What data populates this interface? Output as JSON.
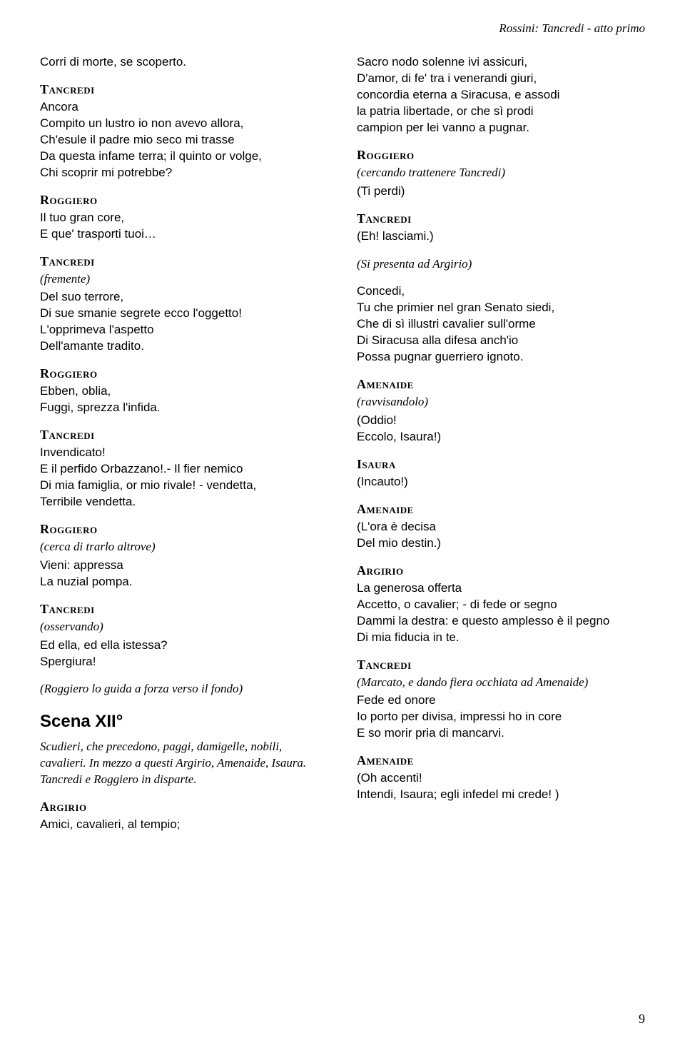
{
  "header": "Rossini: Tancredi - atto primo",
  "page_number": "9",
  "left": [
    {
      "type": "dialogue",
      "text": "Corri di morte, se scoperto."
    },
    {
      "type": "char",
      "text": "Tancredi"
    },
    {
      "type": "dialogue",
      "text": "Ancora\nCompito un lustro io non avevo allora,\nCh'esule il padre mio seco mi trasse\nDa questa infame terra; il quinto or volge,\nChi scoprir mi potrebbe?"
    },
    {
      "type": "char",
      "text": "Roggiero"
    },
    {
      "type": "dialogue",
      "text": "Il tuo gran core,\nE que' trasporti tuoi…"
    },
    {
      "type": "char",
      "text": "Tancredi"
    },
    {
      "type": "stage",
      "text": "(fremente)"
    },
    {
      "type": "dialogue",
      "text": "Del suo terrore,\nDi sue smanie segrete ecco l'oggetto!\nL'opprimeva l'aspetto\nDell'amante tradito."
    },
    {
      "type": "char",
      "text": "Roggiero"
    },
    {
      "type": "dialogue",
      "text": "Ebben, oblia,\nFuggi, sprezza l'infida."
    },
    {
      "type": "char",
      "text": "Tancredi"
    },
    {
      "type": "dialogue",
      "text": "Invendicato!\nE il perfido Orbazzano!.- Il fier nemico\nDi mia famiglia, or mio rivale! - vendetta,\nTerribile vendetta."
    },
    {
      "type": "char",
      "text": "Roggiero"
    },
    {
      "type": "stage",
      "text": "(cerca di trarlo altrove)"
    },
    {
      "type": "dialogue",
      "text": "Vieni: appressa\nLa nuzial pompa."
    },
    {
      "type": "char",
      "text": "Tancredi"
    },
    {
      "type": "stage",
      "text": "(osservando)"
    },
    {
      "type": "dialogue",
      "text": "Ed ella, ed ella istessa?\nSpergiura!"
    },
    {
      "type": "stage",
      "text": "(Roggiero lo guida a forza verso il fondo)"
    },
    {
      "type": "scene",
      "text": "Scena XII°"
    },
    {
      "type": "stage",
      "text": "Scudieri, che precedono, paggi, damigelle, nobili, cavalieri. In mezzo a questi Argirio, Amenaide, Isaura. Tancredi e Roggiero in disparte."
    },
    {
      "type": "char",
      "text": "Argirio"
    },
    {
      "type": "dialogue",
      "text": "Amici, cavalieri, al tempio;"
    }
  ],
  "right": [
    {
      "type": "dialogue",
      "text": "Sacro nodo solenne ivi assicuri,\nD'amor, di fe' tra i venerandi giuri,\nconcordia eterna a Siracusa, e assodi\nla patria libertade, or che sì prodi\ncampion per lei vanno a pugnar."
    },
    {
      "type": "char",
      "text": "Roggiero"
    },
    {
      "type": "stage",
      "text": "(cercando trattenere Tancredi)"
    },
    {
      "type": "dialogue",
      "text": "(Ti perdi)"
    },
    {
      "type": "char",
      "text": "Tancredi"
    },
    {
      "type": "dialogue",
      "text": "(Eh! lasciami.)"
    },
    {
      "type": "stage",
      "text": "(Si presenta ad Argirio)"
    },
    {
      "type": "dialogue",
      "text": "Concedi,\nTu che primier nel gran Senato siedi,\nChe di sì illustri cavalier sull'orme\nDi Siracusa alla difesa anch'io\nPossa pugnar guerriero ignoto."
    },
    {
      "type": "char",
      "text": "Amenaide"
    },
    {
      "type": "stage",
      "text": "(ravvisandolo)"
    },
    {
      "type": "dialogue",
      "text": "(Oddio!\nEccolo, Isaura!)"
    },
    {
      "type": "char",
      "text": "Isaura"
    },
    {
      "type": "dialogue",
      "text": "(Incauto!)"
    },
    {
      "type": "char",
      "text": "Amenaide"
    },
    {
      "type": "dialogue",
      "text": "(L'ora è decisa\nDel mio destin.)"
    },
    {
      "type": "char",
      "text": "Argirio"
    },
    {
      "type": "dialogue",
      "text": "La generosa offerta\nAccetto, o cavalier; - di fede or segno\nDammi la destra: e questo amplesso è il pegno\nDi mia fiducia in te."
    },
    {
      "type": "char",
      "text": "Tancredi"
    },
    {
      "type": "stage",
      "text": "(Marcato, e dando fiera occhiata ad Amenaide)"
    },
    {
      "type": "dialogue",
      "text": "Fede ed onore\nIo porto per divisa, impressi ho in core\nE so morir pria di mancarvi."
    },
    {
      "type": "char",
      "text": "Amenaide"
    },
    {
      "type": "dialogue",
      "text": "(Oh accenti!\nIntendi, Isaura; egli infedel mi crede! )"
    }
  ]
}
